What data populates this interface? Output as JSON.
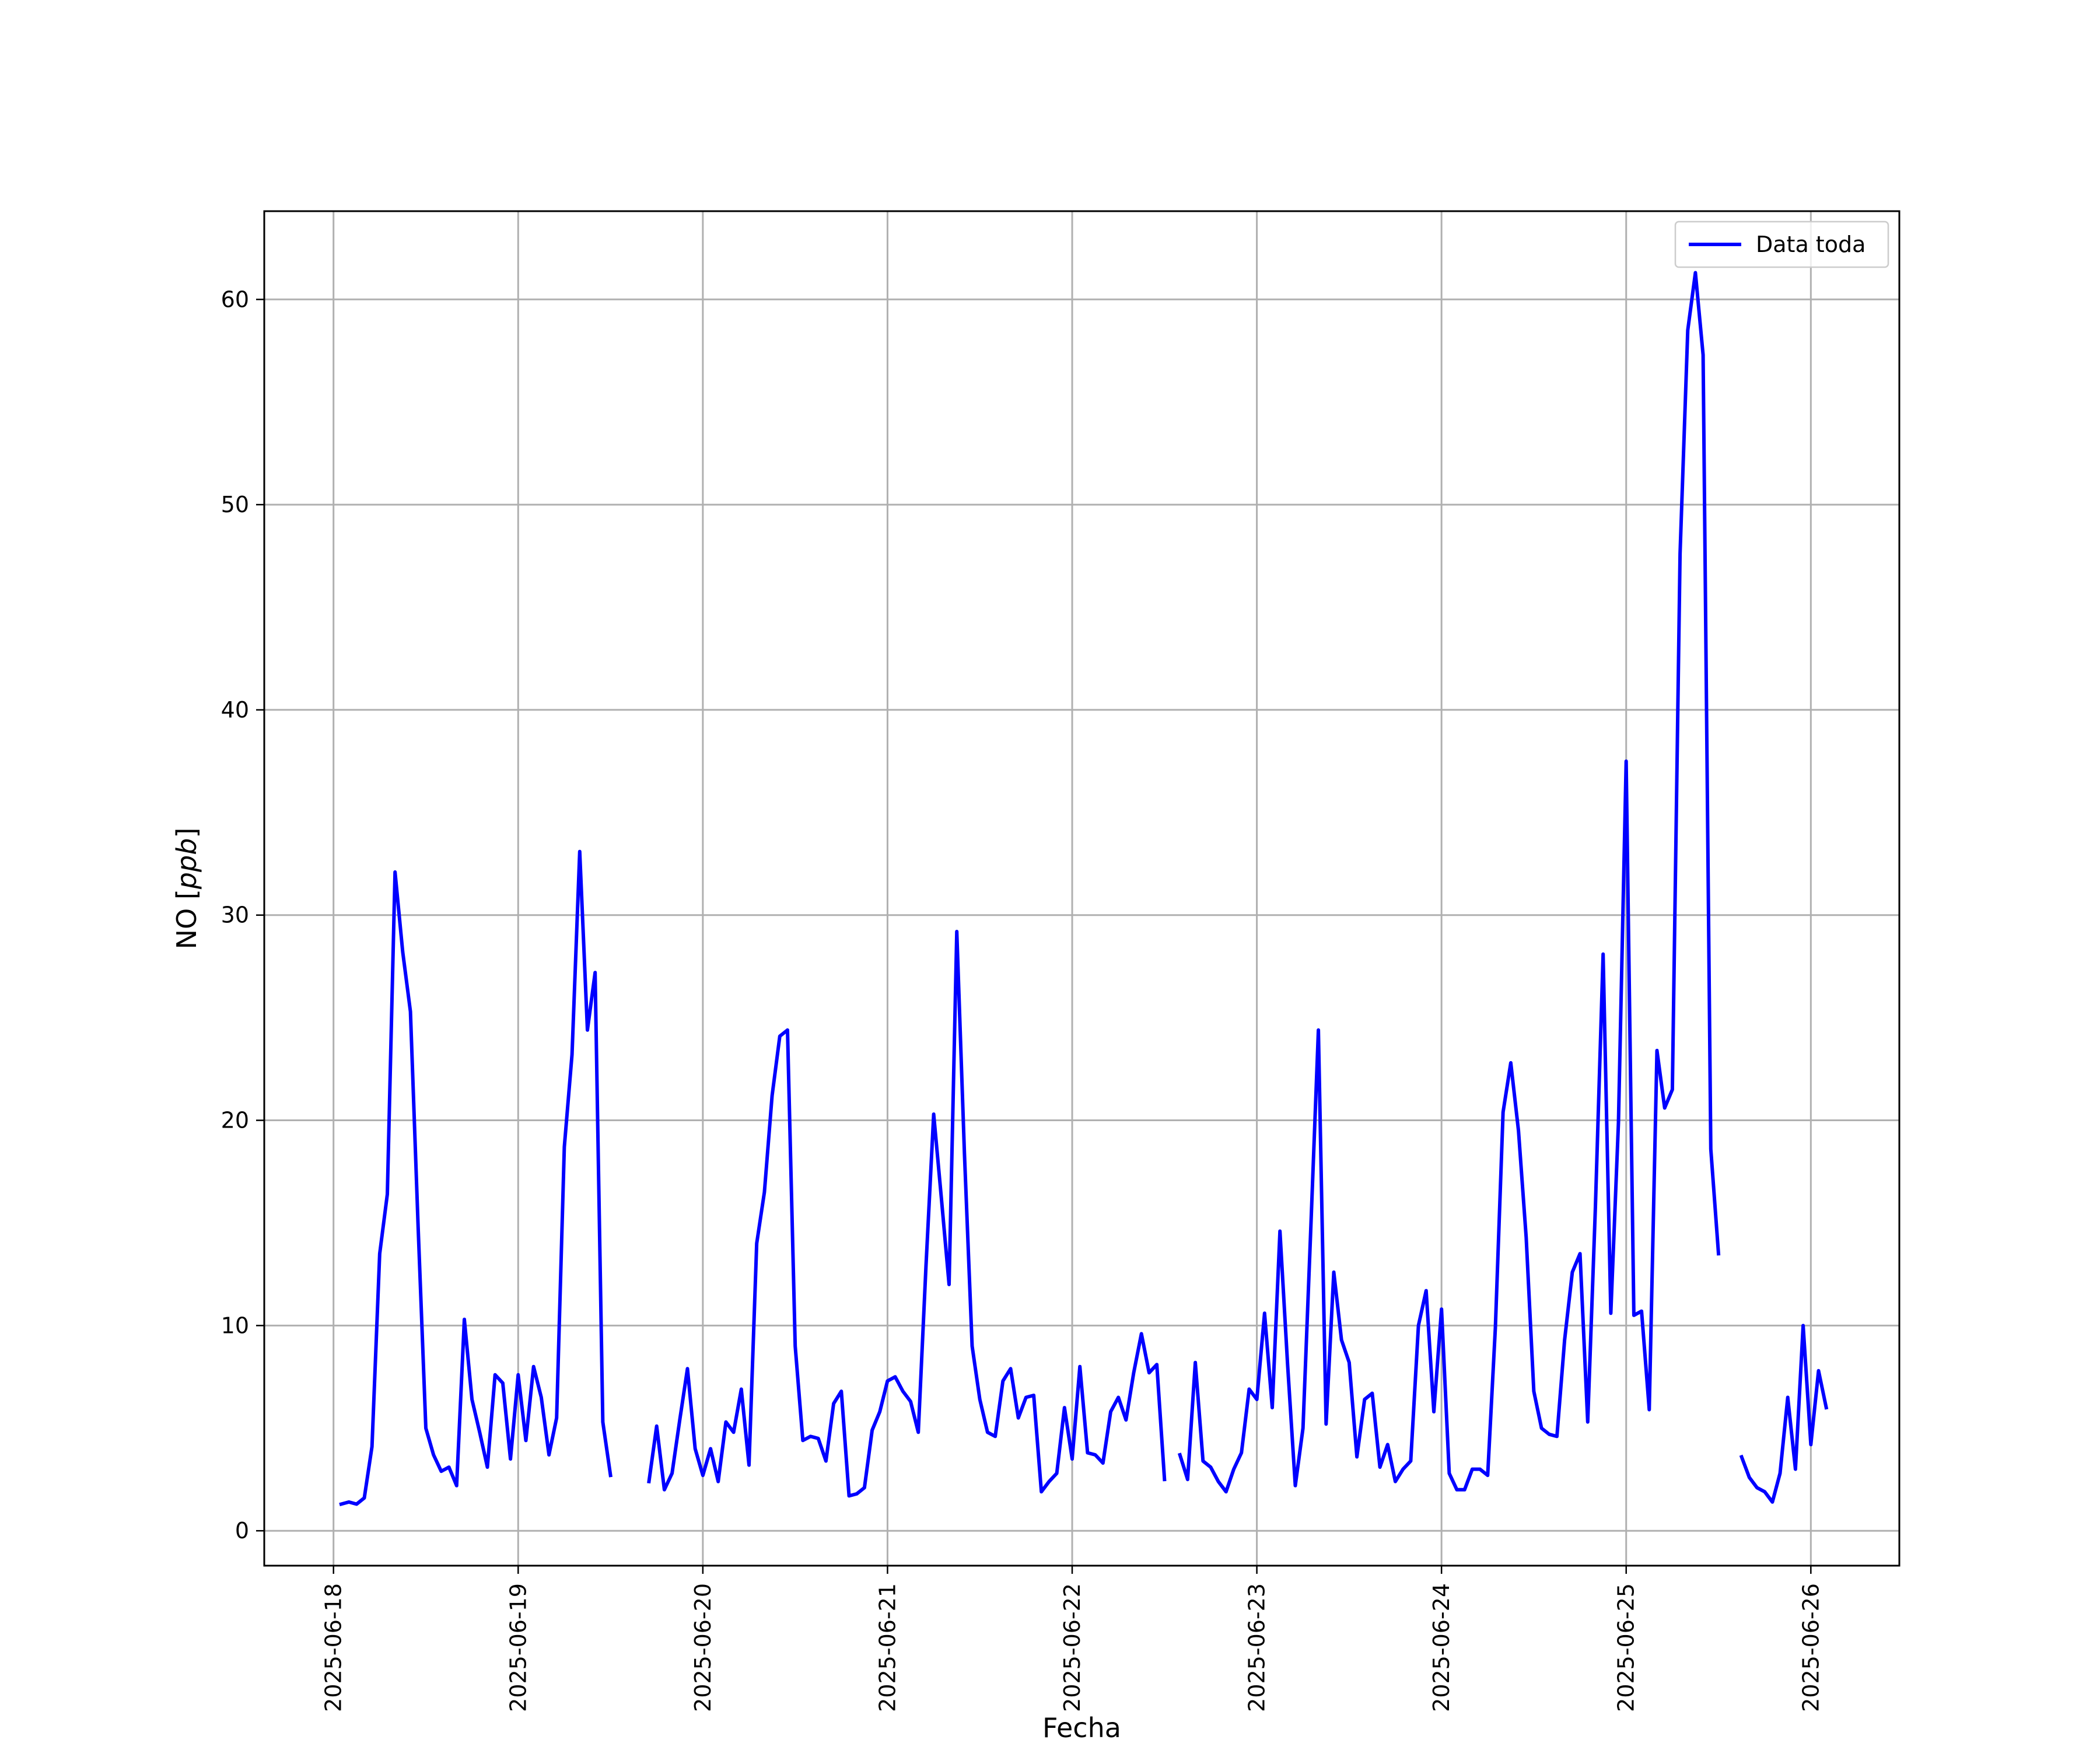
{
  "chart_data": {
    "type": "line",
    "title": "",
    "xlabel": "Fecha",
    "ylabel": "NO [ppb]",
    "ylabel_parts": {
      "plain": "NO [",
      "italic": "ppb",
      "end": "]"
    },
    "x_ticks": [
      "2025-06-18",
      "2025-06-19",
      "2025-06-20",
      "2025-06-21",
      "2025-06-22",
      "2025-06-23",
      "2025-06-24",
      "2025-06-25",
      "2025-06-26"
    ],
    "y_ticks": [
      0,
      10,
      20,
      30,
      40,
      50,
      60
    ],
    "xlim": [
      "2025-06-17 15:00",
      "2025-06-26 11:30"
    ],
    "ylim": [
      -1.7,
      64.3
    ],
    "grid": true,
    "legend_position": "top-right",
    "colors": {
      "series": "#0000ff",
      "grid": "#b0b0b0"
    },
    "series": [
      {
        "name": "Data toda",
        "color": "#0000ff",
        "start": "2025-06-18 01:00",
        "interval_hours": 1,
        "values": [
          1.3,
          1.4,
          1.3,
          1.6,
          4.1,
          13.5,
          16.4,
          32.1,
          28.2,
          25.3,
          14.8,
          5.0,
          3.7,
          2.9,
          3.1,
          2.2,
          10.3,
          6.4,
          4.8,
          3.1,
          7.6,
          7.2,
          3.5,
          7.6,
          4.4,
          8.0,
          6.5,
          3.7,
          5.5,
          18.7,
          23.2,
          33.1,
          24.4,
          27.2,
          5.3,
          2.7,
          null,
          null,
          null,
          null,
          2.4,
          5.1,
          2.0,
          2.8,
          5.4,
          7.9,
          4.0,
          2.7,
          4.0,
          2.4,
          5.3,
          4.8,
          6.9,
          3.2,
          14.0,
          16.5,
          21.2,
          24.1,
          24.4,
          9.0,
          4.4,
          4.6,
          4.5,
          3.4,
          6.2,
          6.8,
          1.7,
          1.8,
          2.1,
          4.9,
          5.8,
          7.3,
          7.5,
          6.8,
          6.3,
          4.8,
          12.9,
          20.3,
          16.2,
          12.0,
          29.2,
          18.4,
          9.0,
          6.4,
          4.8,
          4.6,
          7.3,
          7.9,
          5.5,
          6.5,
          6.6,
          1.9,
          2.4,
          2.8,
          6.0,
          3.5,
          8.0,
          3.8,
          3.7,
          3.3,
          5.8,
          6.5,
          5.4,
          7.7,
          9.6,
          7.7,
          8.1,
          2.5,
          null,
          3.7,
          2.5,
          8.2,
          3.4,
          3.1,
          2.4,
          1.9,
          3.0,
          3.8,
          6.9,
          6.4,
          10.6,
          6.0,
          14.6,
          8.1,
          2.2,
          5.0,
          14.6,
          24.4,
          5.2,
          12.6,
          9.3,
          8.2,
          3.6,
          6.4,
          6.7,
          3.1,
          4.2,
          2.4,
          3.0,
          3.4,
          10.0,
          11.7,
          5.8,
          10.8,
          2.8,
          2.0,
          2.0,
          3.0,
          3.0,
          2.7,
          9.9,
          20.4,
          22.8,
          19.5,
          14.3,
          6.8,
          5.0,
          4.7,
          4.6,
          9.3,
          12.6,
          13.5,
          5.3,
          15.8,
          28.1,
          10.6,
          19.9,
          37.5,
          10.5,
          10.7,
          5.9,
          23.4,
          20.6,
          21.5,
          47.6,
          58.5,
          61.3,
          57.3,
          18.6,
          13.5,
          null,
          null,
          3.6,
          2.6,
          2.1,
          1.9,
          1.4,
          2.8,
          6.5,
          3.0,
          10.0,
          4.2,
          7.8,
          6.0
        ]
      }
    ]
  }
}
